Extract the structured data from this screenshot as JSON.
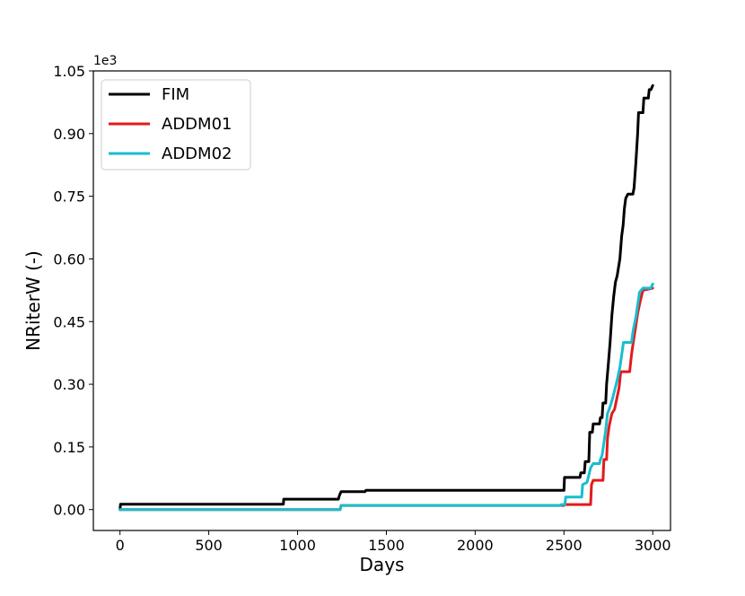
{
  "chart_data": {
    "type": "line",
    "xlabel": "Days",
    "ylabel": "NRiterW  (-)",
    "y_exponent_label": "1e3",
    "xlim": [
      -150,
      3100
    ],
    "ylim": [
      -0.05,
      1.05
    ],
    "x_ticks": [
      0,
      500,
      1000,
      1500,
      2000,
      2500,
      3000
    ],
    "x_tick_labels": [
      "0",
      "500",
      "1000",
      "1500",
      "2000",
      "2500",
      "3000"
    ],
    "y_ticks": [
      0.0,
      0.15,
      0.3,
      0.45,
      0.6,
      0.75,
      0.9,
      1.05
    ],
    "y_tick_labels": [
      "0.00",
      "0.15",
      "0.30",
      "0.45",
      "0.60",
      "0.75",
      "0.90",
      "1.05"
    ],
    "grid": false,
    "legend_position": "top-left",
    "series": [
      {
        "name": "FIM",
        "color": "#000000",
        "points": [
          [
            0,
            0.0
          ],
          [
            3,
            0.013
          ],
          [
            920,
            0.013
          ],
          [
            922,
            0.025
          ],
          [
            1230,
            0.025
          ],
          [
            1235,
            0.033
          ],
          [
            1245,
            0.043
          ],
          [
            1380,
            0.043
          ],
          [
            1385,
            0.046
          ],
          [
            2500,
            0.046
          ],
          [
            2503,
            0.077
          ],
          [
            2590,
            0.077
          ],
          [
            2595,
            0.088
          ],
          [
            2615,
            0.088
          ],
          [
            2620,
            0.115
          ],
          [
            2640,
            0.115
          ],
          [
            2645,
            0.185
          ],
          [
            2660,
            0.185
          ],
          [
            2665,
            0.205
          ],
          [
            2700,
            0.205
          ],
          [
            2705,
            0.22
          ],
          [
            2715,
            0.22
          ],
          [
            2720,
            0.255
          ],
          [
            2735,
            0.255
          ],
          [
            2740,
            0.3
          ],
          [
            2750,
            0.35
          ],
          [
            2760,
            0.4
          ],
          [
            2770,
            0.465
          ],
          [
            2780,
            0.51
          ],
          [
            2790,
            0.545
          ],
          [
            2800,
            0.56
          ],
          [
            2815,
            0.6
          ],
          [
            2825,
            0.655
          ],
          [
            2833,
            0.68
          ],
          [
            2840,
            0.72
          ],
          [
            2848,
            0.745
          ],
          [
            2860,
            0.755
          ],
          [
            2888,
            0.755
          ],
          [
            2895,
            0.77
          ],
          [
            2905,
            0.83
          ],
          [
            2915,
            0.9
          ],
          [
            2920,
            0.95
          ],
          [
            2945,
            0.95
          ],
          [
            2950,
            0.985
          ],
          [
            2975,
            0.985
          ],
          [
            2980,
            1.005
          ],
          [
            2990,
            1.005
          ],
          [
            3000,
            1.015
          ]
        ]
      },
      {
        "name": "ADDM01",
        "color": "#e31a1c",
        "points": [
          [
            0,
            0.0
          ],
          [
            1240,
            0.0
          ],
          [
            1245,
            0.01
          ],
          [
            2500,
            0.01
          ],
          [
            2503,
            0.012
          ],
          [
            2650,
            0.012
          ],
          [
            2655,
            0.06
          ],
          [
            2665,
            0.07
          ],
          [
            2720,
            0.07
          ],
          [
            2725,
            0.12
          ],
          [
            2740,
            0.12
          ],
          [
            2745,
            0.17
          ],
          [
            2755,
            0.2
          ],
          [
            2770,
            0.23
          ],
          [
            2785,
            0.24
          ],
          [
            2800,
            0.27
          ],
          [
            2810,
            0.29
          ],
          [
            2820,
            0.33
          ],
          [
            2870,
            0.33
          ],
          [
            2880,
            0.37
          ],
          [
            2890,
            0.4
          ],
          [
            2905,
            0.44
          ],
          [
            2915,
            0.47
          ],
          [
            2930,
            0.5
          ],
          [
            2945,
            0.525
          ],
          [
            3000,
            0.53
          ]
        ]
      },
      {
        "name": "ADDM02",
        "color": "#17becf",
        "points": [
          [
            0,
            0.0
          ],
          [
            1240,
            0.0
          ],
          [
            1245,
            0.01
          ],
          [
            2480,
            0.01
          ],
          [
            2485,
            0.012
          ],
          [
            2505,
            0.012
          ],
          [
            2510,
            0.03
          ],
          [
            2600,
            0.03
          ],
          [
            2605,
            0.06
          ],
          [
            2630,
            0.065
          ],
          [
            2650,
            0.1
          ],
          [
            2665,
            0.11
          ],
          [
            2700,
            0.11
          ],
          [
            2705,
            0.12
          ],
          [
            2715,
            0.13
          ],
          [
            2725,
            0.16
          ],
          [
            2735,
            0.19
          ],
          [
            2745,
            0.23
          ],
          [
            2755,
            0.24
          ],
          [
            2770,
            0.26
          ],
          [
            2785,
            0.285
          ],
          [
            2800,
            0.31
          ],
          [
            2815,
            0.34
          ],
          [
            2825,
            0.37
          ],
          [
            2835,
            0.4
          ],
          [
            2880,
            0.4
          ],
          [
            2890,
            0.43
          ],
          [
            2905,
            0.46
          ],
          [
            2915,
            0.49
          ],
          [
            2925,
            0.52
          ],
          [
            2945,
            0.53
          ],
          [
            2990,
            0.53
          ],
          [
            3000,
            0.54
          ]
        ]
      }
    ]
  }
}
